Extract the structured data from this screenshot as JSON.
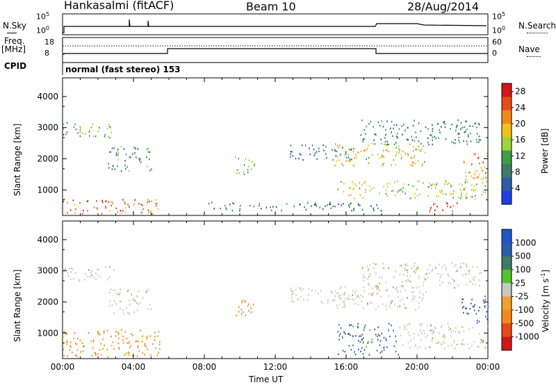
{
  "header": {
    "title": "Hankasalmi (fitACF)",
    "beam": "Beam 10",
    "date": "28/Aug/2014"
  },
  "noise_panel": {
    "left_label": "N.Sky",
    "left_top": "10^5",
    "left_bottom": "10^0",
    "right_label": "N.Search",
    "right_top": "10^5",
    "right_bottom": "10^0"
  },
  "freq_panel": {
    "label_line1": "Freq.",
    "label_line2": "[MHz]",
    "left_top": "18",
    "left_bottom": "8",
    "right_label": "Nave",
    "right_top": "60",
    "right_bottom": "0",
    "cpid_label": "CPID",
    "mode_text": "normal (fast stereo) 153"
  },
  "colors": {
    "power_scale": [
      "#1f3fe0",
      "#2d5da8",
      "#3f7a68",
      "#3f9c4a",
      "#9fd23c",
      "#f0c21a",
      "#f28a1a",
      "#e84a1a",
      "#d01818"
    ],
    "velocity_scale": [
      "#2255c8",
      "#2d5da8",
      "#3f7a68",
      "#55c030",
      "#c8c8c2",
      "#f0a030",
      "#f28a1a",
      "#e84a1a",
      "#d01818"
    ]
  },
  "chart_data": [
    {
      "type": "heatmap",
      "ylabel": "Slant Range [km]",
      "xlabel": "",
      "xlim": [
        "00:00",
        "24:00"
      ],
      "ylim": [
        180,
        4600
      ],
      "yticks": [
        1000,
        2000,
        3000,
        4000
      ],
      "xticks": [
        "00:00",
        "04:00",
        "08:00",
        "12:00",
        "16:00",
        "20:00",
        "00:00"
      ],
      "colorbar": {
        "label": "Power [dB]",
        "ticks": [
          4,
          8,
          12,
          16,
          20,
          24,
          28
        ],
        "range": [
          0,
          30
        ]
      },
      "regions": [
        {
          "t0": 0.0,
          "t1": 2.9,
          "r0": 2650,
          "r1": 3150,
          "level": 12
        },
        {
          "t0": 2.5,
          "t1": 5.0,
          "r0": 1600,
          "r1": 2400,
          "level": 10
        },
        {
          "t0": 0.0,
          "t1": 5.5,
          "r0": 220,
          "r1": 700,
          "level": 24
        },
        {
          "t0": 8.0,
          "t1": 18.0,
          "r0": 320,
          "r1": 600,
          "level": 8
        },
        {
          "t0": 9.7,
          "t1": 10.8,
          "r0": 1500,
          "r1": 2100,
          "level": 14
        },
        {
          "t0": 12.8,
          "t1": 16.5,
          "r0": 1950,
          "r1": 2450,
          "level": 6
        },
        {
          "t0": 15.3,
          "t1": 20.5,
          "r0": 1750,
          "r1": 2500,
          "level": 18
        },
        {
          "t0": 16.8,
          "t1": 23.6,
          "r0": 2450,
          "r1": 3250,
          "level": 8
        },
        {
          "t0": 15.5,
          "t1": 24.0,
          "r0": 700,
          "r1": 1300,
          "level": 16
        },
        {
          "t0": 22.5,
          "t1": 24.0,
          "r0": 1300,
          "r1": 2200,
          "level": 22
        },
        {
          "t0": 20.5,
          "t1": 22.5,
          "r0": 300,
          "r1": 600,
          "level": 26
        }
      ]
    },
    {
      "type": "heatmap",
      "ylabel": "Slant Range [km]",
      "xlabel": "Time UT",
      "xlim": [
        "00:00",
        "24:00"
      ],
      "ylim": [
        180,
        4600
      ],
      "yticks": [
        1000,
        2000,
        3000,
        4000
      ],
      "xticks": [
        "00:00",
        "04:00",
        "08:00",
        "12:00",
        "16:00",
        "20:00",
        "00:00"
      ],
      "colorbar": {
        "label": "Velocity [m s^-1]",
        "ticks": [
          "1000",
          "500",
          "100",
          "25",
          "-25",
          "-100",
          "-500",
          "-1000"
        ]
      },
      "regions": [
        {
          "t0": 0.0,
          "t1": 2.9,
          "r0": 2650,
          "r1": 3150,
          "level": 0
        },
        {
          "t0": 2.5,
          "t1": 5.0,
          "r0": 1600,
          "r1": 2400,
          "level": 0
        },
        {
          "t0": 0.0,
          "t1": 5.5,
          "r0": 220,
          "r1": 1100,
          "level": -150
        },
        {
          "t0": 9.7,
          "t1": 10.8,
          "r0": 1500,
          "r1": 2100,
          "level": -300
        },
        {
          "t0": 12.8,
          "t1": 16.5,
          "r0": 1950,
          "r1": 2450,
          "level": 0
        },
        {
          "t0": 15.3,
          "t1": 20.5,
          "r0": 1750,
          "r1": 2500,
          "level": 0
        },
        {
          "t0": 16.8,
          "t1": 23.6,
          "r0": 2450,
          "r1": 3250,
          "level": 0
        },
        {
          "t0": 15.5,
          "t1": 19.0,
          "r0": 300,
          "r1": 1300,
          "level": 150
        },
        {
          "t0": 19.0,
          "t1": 24.0,
          "r0": 500,
          "r1": 1300,
          "level": 0
        },
        {
          "t0": 22.5,
          "t1": 24.0,
          "r0": 1300,
          "r1": 2200,
          "level": 300
        }
      ]
    }
  ]
}
